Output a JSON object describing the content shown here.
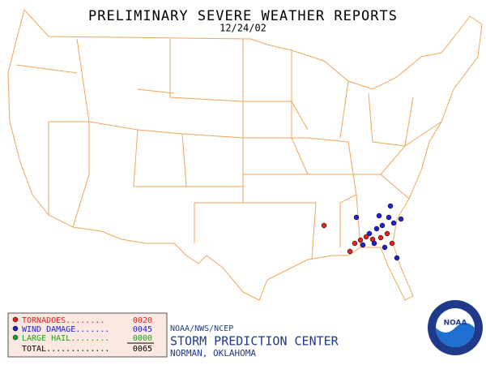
{
  "header": {
    "title": "PRELIMINARY SEVERE WEATHER REPORTS",
    "date": "12/24/02"
  },
  "legend": {
    "items": [
      {
        "label": "TORNADOES........",
        "count": "0020"
      },
      {
        "label": "WIND DAMAGE.......",
        "count": "0045"
      },
      {
        "label": "LARGE HAIL........",
        "count": "0000"
      }
    ],
    "total": {
      "label": "TOTAL.............",
      "count": "0065"
    }
  },
  "credits": {
    "agency": "NOAA/NWS/NCEP",
    "center": "STORM PREDICTION CENTER",
    "location": "NORMAN, OKLAHOMA"
  },
  "logo": "NOAA"
}
